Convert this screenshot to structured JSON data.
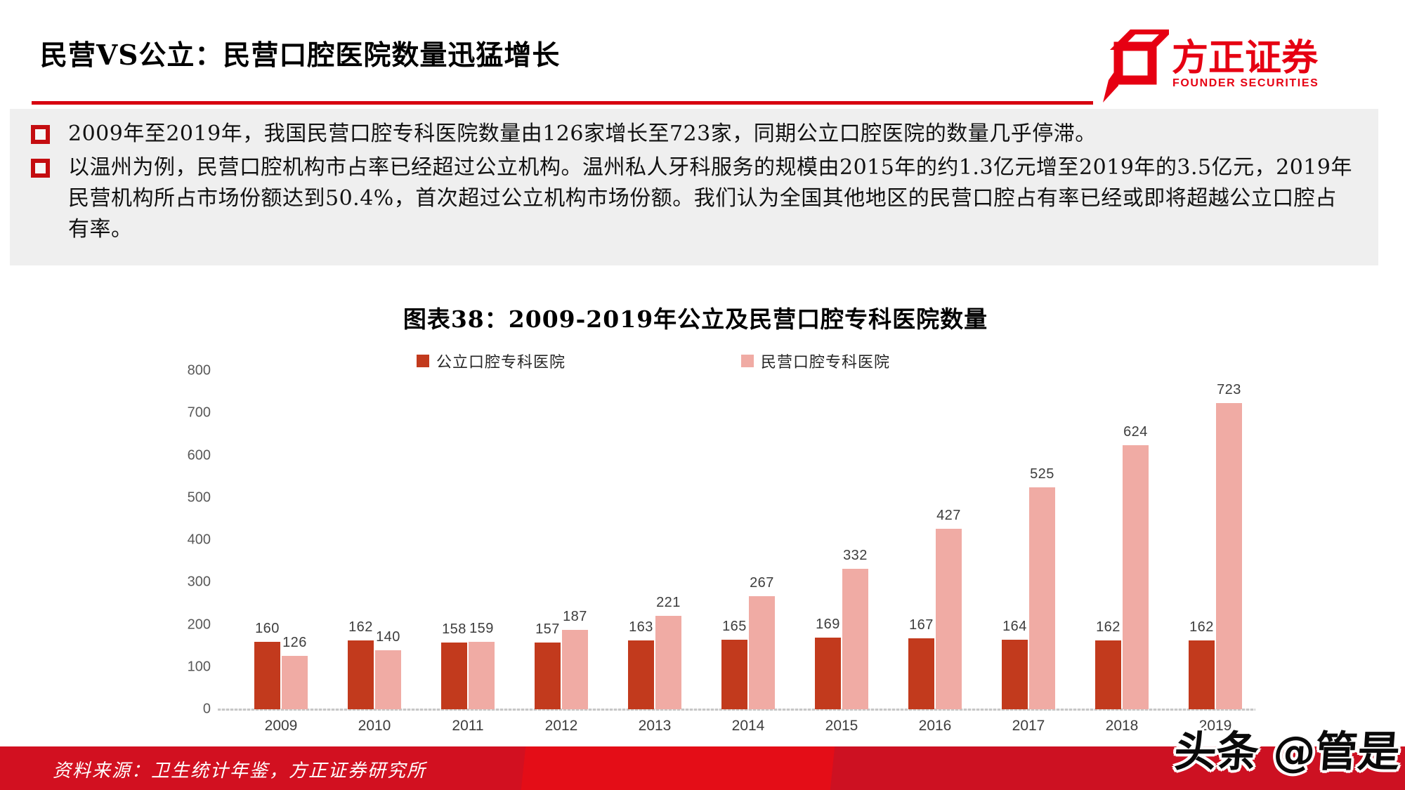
{
  "header": {
    "title": "民营VS公立：民营口腔医院数量迅猛增长",
    "logo_cn": "方正证券",
    "logo_en": "FOUNDER SECURITIES"
  },
  "bullets": [
    "2009年至2019年，我国民营口腔专科医院数量由126家增长至723家，同期公立口腔医院的数量几乎停滞。",
    "以温州为例，民营口腔机构市占率已经超过公立机构。温州私人牙科服务的规模由2015年的约1.3亿元增至2019年的3.5亿元，2019年民营机构所占市场份额达到50.4%，首次超过公立机构市场份额。我们认为全国其他地区的民营口腔占有率已经或即将超越公立口腔占有率。"
  ],
  "chart_data": {
    "type": "bar",
    "title": "图表38：2009-2019年公立及民营口腔专科医院数量",
    "categories": [
      "2009",
      "2010",
      "2011",
      "2012",
      "2013",
      "2014",
      "2015",
      "2016",
      "2017",
      "2018",
      "2019"
    ],
    "series": [
      {
        "name": "公立口腔专科医院",
        "color": "#c23a1d",
        "values": [
          160,
          162,
          158,
          157,
          163,
          165,
          169,
          167,
          164,
          162,
          162
        ]
      },
      {
        "name": "民营口腔专科医院",
        "color": "#f0aba4",
        "values": [
          126,
          140,
          159,
          187,
          221,
          267,
          332,
          427,
          525,
          624,
          723
        ]
      }
    ],
    "ylim": [
      0,
      800
    ],
    "ytick_step": 100,
    "legend_position": "top",
    "grid": false,
    "value_labels": true
  },
  "footer": {
    "source": "资料来源：卫生统计年鉴，方正证券研究所"
  },
  "watermark": "头条 @管是",
  "colors": {
    "accent_red": "#d7000f",
    "logo_red": "#e60012",
    "bullet_red": "#c40d10",
    "summary_bg": "#efefef",
    "public_bar": "#c23a1d",
    "private_bar": "#f0aba4",
    "footer_reds": [
      "#d21020",
      "#e40d17",
      "#cd1122"
    ]
  }
}
